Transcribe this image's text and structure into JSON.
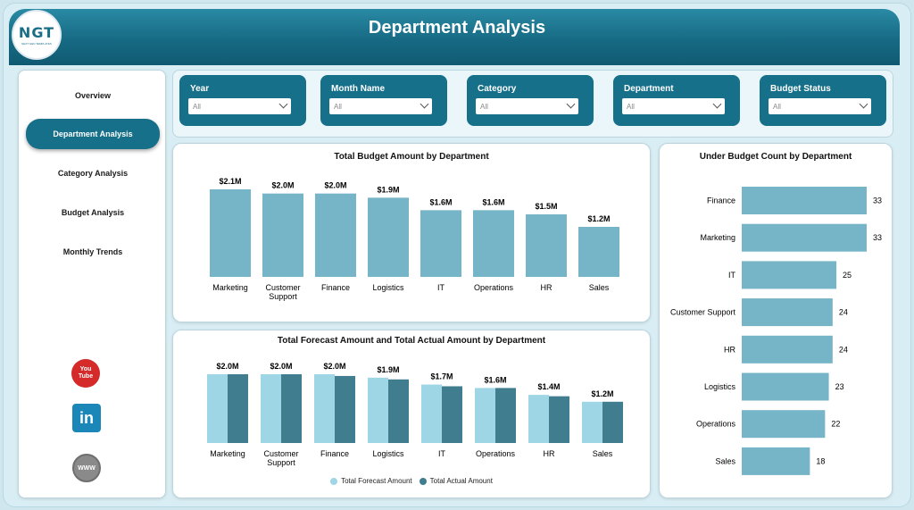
{
  "app": {
    "title": "Department Analysis",
    "logo_text": "NGT",
    "logo_subtitle": "NEXT GEN TEMPLATES"
  },
  "sidebar": {
    "items": [
      {
        "label": "Overview"
      },
      {
        "label": "Department Analysis",
        "active": true
      },
      {
        "label": "Category Analysis"
      },
      {
        "label": "Budget Analysis"
      },
      {
        "label": "Monthly Trends"
      }
    ],
    "social": {
      "youtube_line1": "You",
      "youtube_line2": "Tube",
      "linkedin": "in",
      "website": "WWW"
    }
  },
  "filters": [
    {
      "label": "Year",
      "value": "All"
    },
    {
      "label": "Month Name",
      "value": "All"
    },
    {
      "label": "Category",
      "value": "All"
    },
    {
      "label": "Department",
      "value": "All"
    },
    {
      "label": "Budget Status",
      "value": "All"
    }
  ],
  "colors": {
    "header": "#167089",
    "bar_light": "#76b4c8",
    "bar_forecast": "#9fd6e6",
    "bar_actual": "#3f7d8f"
  },
  "chart_data": [
    {
      "type": "bar",
      "title": "Total Budget Amount by Department",
      "categories": [
        "Marketing",
        "Customer Support",
        "Finance",
        "Logistics",
        "IT",
        "Operations",
        "HR",
        "Sales"
      ],
      "values": [
        2.1,
        2.0,
        2.0,
        1.9,
        1.6,
        1.6,
        1.5,
        1.2
      ],
      "data_labels": [
        "$2.1M",
        "$2.0M",
        "$2.0M",
        "$1.9M",
        "$1.6M",
        "$1.6M",
        "$1.5M",
        "$1.2M"
      ],
      "unit": "M",
      "grid": false
    },
    {
      "type": "bar",
      "title": "Total Forecast Amount and Total Actual Amount by Department",
      "categories": [
        "Marketing",
        "Customer Support",
        "Finance",
        "Logistics",
        "IT",
        "Operations",
        "HR",
        "Sales"
      ],
      "series": [
        {
          "name": "Total Forecast Amount",
          "values": [
            2.0,
            2.0,
            2.0,
            1.9,
            1.7,
            1.6,
            1.4,
            1.2
          ]
        },
        {
          "name": "Total Actual Amount",
          "values": [
            2.0,
            2.0,
            1.95,
            1.85,
            1.65,
            1.6,
            1.36,
            1.2
          ]
        }
      ],
      "data_labels": [
        "$2.0M",
        "$2.0M",
        "$2.0M",
        "$1.9M",
        "$1.7M",
        "$1.6M",
        "$1.4M",
        "$1.2M"
      ],
      "legend": "bottom",
      "grid": false
    },
    {
      "type": "bar",
      "orientation": "horizontal",
      "title": "Under Budget Count by Department",
      "categories": [
        "Finance",
        "Marketing",
        "IT",
        "Customer Support",
        "HR",
        "Logistics",
        "Operations",
        "Sales"
      ],
      "values": [
        33,
        33,
        25,
        24,
        24,
        23,
        22,
        18
      ],
      "grid": false
    }
  ]
}
